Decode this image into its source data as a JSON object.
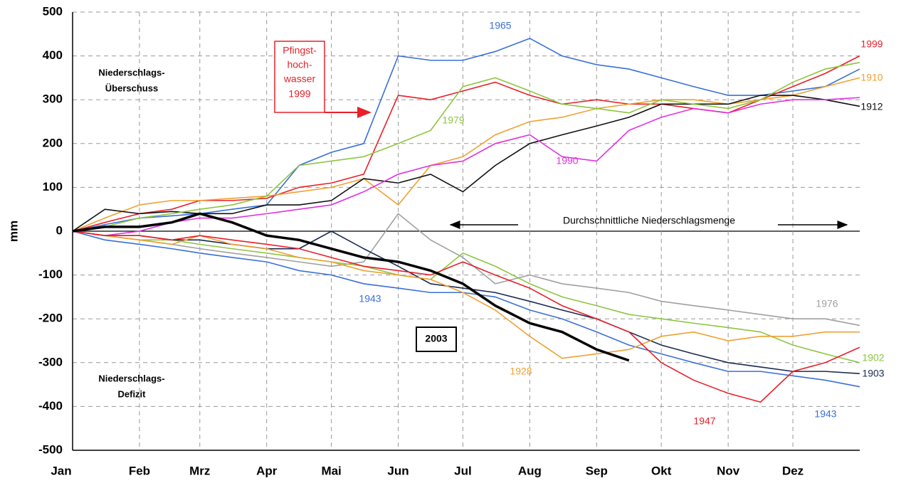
{
  "chart_data": {
    "type": "line",
    "ylabel": "mm",
    "xlim": [
      0,
      365
    ],
    "xticks": [
      {
        "value": 0,
        "label": "Jan"
      },
      {
        "value": 31,
        "label": "Feb"
      },
      {
        "value": 59,
        "label": "Mrz"
      },
      {
        "value": 90,
        "label": "Apr"
      },
      {
        "value": 120,
        "label": "Mai"
      },
      {
        "value": 151,
        "label": "Jun"
      },
      {
        "value": 181,
        "label": "Jul"
      },
      {
        "value": 212,
        "label": "Aug"
      },
      {
        "value": 243,
        "label": "Sep"
      },
      {
        "value": 273,
        "label": "Okt"
      },
      {
        "value": 304,
        "label": "Nov"
      },
      {
        "value": 334,
        "label": "Dez"
      }
    ],
    "ylim": [
      -500,
      500
    ],
    "yticks": [
      500,
      400,
      300,
      200,
      100,
      0,
      -100,
      -200,
      -300,
      -400,
      -500
    ],
    "grid": true,
    "x": [
      0,
      15,
      31,
      46,
      59,
      74,
      90,
      105,
      120,
      135,
      151,
      166,
      181,
      196,
      212,
      227,
      243,
      258,
      273,
      288,
      304,
      319,
      334,
      349,
      365
    ],
    "series": [
      {
        "name": "1965",
        "color": "#3a6fd8",
        "values": [
          0,
          15,
          30,
          35,
          40,
          50,
          60,
          150,
          180,
          200,
          400,
          390,
          390,
          410,
          440,
          400,
          380,
          370,
          350,
          330,
          310,
          310,
          320,
          330,
          370
        ]
      },
      {
        "name": "1999",
        "color": "#e8202a",
        "values": [
          0,
          20,
          40,
          50,
          70,
          70,
          75,
          100,
          110,
          130,
          310,
          300,
          320,
          340,
          310,
          290,
          300,
          290,
          290,
          280,
          270,
          300,
          330,
          360,
          400
        ]
      },
      {
        "name": "1910",
        "color": "#f0a030",
        "values": [
          0,
          30,
          60,
          70,
          70,
          75,
          80,
          90,
          100,
          120,
          60,
          150,
          170,
          220,
          250,
          260,
          280,
          290,
          300,
          300,
          290,
          300,
          310,
          330,
          350
        ]
      },
      {
        "name": "1912",
        "color": "#111111",
        "values": [
          0,
          50,
          40,
          45,
          40,
          40,
          60,
          60,
          70,
          120,
          110,
          130,
          90,
          150,
          200,
          220,
          240,
          260,
          290,
          290,
          290,
          310,
          310,
          300,
          285
        ]
      },
      {
        "name": "1979",
        "color": "#8cc63f",
        "values": [
          0,
          10,
          30,
          40,
          50,
          60,
          80,
          150,
          160,
          170,
          200,
          230,
          330,
          350,
          320,
          290,
          280,
          270,
          300,
          290,
          280,
          300,
          340,
          370,
          385
        ]
      },
      {
        "name": "1990",
        "color": "#e030e0",
        "values": [
          0,
          -10,
          0,
          20,
          30,
          30,
          40,
          50,
          60,
          90,
          130,
          150,
          160,
          200,
          220,
          170,
          160,
          230,
          260,
          280,
          270,
          290,
          300,
          300,
          305
        ]
      },
      {
        "name": "1976",
        "color": "#a0a0a0",
        "values": [
          0,
          -10,
          -20,
          -30,
          -40,
          -50,
          -60,
          -70,
          -80,
          -70,
          40,
          -20,
          -60,
          -120,
          -100,
          -120,
          -130,
          -140,
          -160,
          -170,
          -180,
          -190,
          -200,
          -200,
          -215
        ]
      },
      {
        "name": "1902",
        "color": "#8cc63f",
        "values": [
          0,
          -10,
          -20,
          -20,
          -30,
          -40,
          -50,
          -60,
          -70,
          -80,
          -100,
          -110,
          -50,
          -80,
          -120,
          -150,
          -170,
          -190,
          -200,
          -210,
          -220,
          -230,
          -260,
          -280,
          -300
        ]
      },
      {
        "name": "1903",
        "color": "#1a2a50",
        "values": [
          0,
          -10,
          -10,
          -20,
          -20,
          -30,
          -40,
          -40,
          0,
          -40,
          -80,
          -120,
          -130,
          -140,
          -160,
          -180,
          -200,
          -230,
          -260,
          -280,
          -300,
          -310,
          -320,
          -320,
          -325
        ]
      },
      {
        "name": "1943",
        "color": "#3a6fd8",
        "values": [
          0,
          -20,
          -30,
          -40,
          -50,
          -60,
          -70,
          -90,
          -100,
          -120,
          -130,
          -140,
          -140,
          -150,
          -180,
          -200,
          -230,
          -260,
          -280,
          -300,
          -320,
          -320,
          -330,
          -340,
          -355
        ]
      },
      {
        "name": "1928",
        "color": "#f0a030",
        "values": [
          0,
          -10,
          -20,
          -30,
          -10,
          -30,
          -40,
          -60,
          -70,
          -90,
          -100,
          -110,
          -140,
          -180,
          -240,
          -290,
          -280,
          -270,
          -240,
          -230,
          -250,
          -240,
          -240,
          -230,
          -230
        ]
      },
      {
        "name": "1947",
        "color": "#e8202a",
        "values": [
          0,
          -10,
          -10,
          -20,
          -10,
          -20,
          -30,
          -40,
          -60,
          -80,
          -90,
          -100,
          -70,
          -100,
          -130,
          -170,
          -200,
          -230,
          -300,
          -340,
          -370,
          -390,
          -320,
          -300,
          -265
        ]
      },
      {
        "name": "2003",
        "color": "#000000",
        "values": [
          0,
          10,
          10,
          20,
          40,
          20,
          -10,
          -20,
          -40,
          -60,
          -70,
          -90,
          -120,
          -170,
          -210,
          -230,
          -270,
          -295,
          null,
          null,
          null,
          null,
          null,
          null,
          null
        ]
      }
    ],
    "annotations": {
      "surplus": [
        "Niederschlags-",
        "Überschuss"
      ],
      "deficit": [
        "Niederschlags-",
        "Defizit"
      ],
      "flood": [
        "Pfingst-",
        "hoch-",
        "wasser",
        "1999"
      ],
      "average": "Durchschnittliche Niederschlagsmenge"
    }
  }
}
